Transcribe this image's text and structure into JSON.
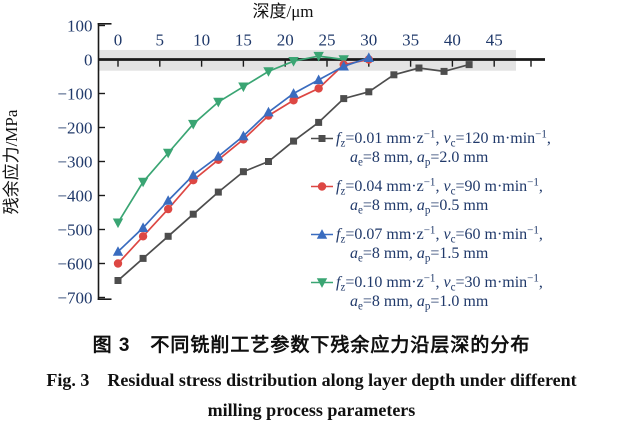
{
  "figure": {
    "caption_cn": "图 3　不同铣削工艺参数下残余应力沿层深的分布",
    "caption_en_line1": "Fig. 3　Residual stress distribution along layer depth under different",
    "caption_en_line2": "milling process parameters"
  },
  "colors": {
    "background": "#ffffff",
    "axis": "#1a1a1a",
    "tick_text": "#20396a",
    "legend_text": "#20396a",
    "zero_band": "#e3e3e3"
  },
  "chart_data": {
    "type": "line",
    "title": "",
    "xlabel": "深度/μm",
    "ylabel": "残余应力/MPa",
    "xlim": [
      0,
      47
    ],
    "ylim": [
      -700,
      100
    ],
    "x_ticks": [
      0,
      5,
      10,
      15,
      20,
      25,
      30,
      35,
      40,
      45
    ],
    "y_ticks": [
      100,
      0,
      -100,
      -200,
      -300,
      -400,
      -500,
      -600,
      -700
    ],
    "grid": false,
    "legend_position": "right-middle",
    "zero_band_mpa": [
      28,
      -33
    ],
    "series": [
      {
        "name": "fz=0.01 mm·z−1, vc=120 m·min−1, ae=8 mm, ap=2.0 mm",
        "marker": "square",
        "color": "#4d4d4d",
        "x": [
          0,
          3,
          6,
          9,
          12,
          15,
          18,
          21,
          24,
          27,
          30,
          33,
          36,
          39,
          42
        ],
        "y": [
          -650,
          -585,
          -520,
          -455,
          -390,
          -330,
          -300,
          -240,
          -185,
          -115,
          -95,
          -45,
          -25,
          -35,
          -15
        ]
      },
      {
        "name": "fz=0.04 mm·z−1, vc=90 m·min−1, ae=8 mm, ap=0.5 mm",
        "marker": "circle",
        "color": "#dd4743",
        "x": [
          0,
          3,
          6,
          9,
          12,
          15,
          18,
          21,
          24,
          27,
          30
        ],
        "y": [
          -600,
          -520,
          -440,
          -355,
          -295,
          -235,
          -165,
          -120,
          -85,
          -15,
          0
        ]
      },
      {
        "name": "fz=0.07 mm·z−1, vc=60 m·min−1, ae=8 mm, ap=1.5 mm",
        "marker": "triangle-up",
        "color": "#3a6cbf",
        "x": [
          0,
          3,
          6,
          9,
          12,
          15,
          18,
          21,
          24,
          27,
          30
        ],
        "y": [
          -565,
          -495,
          -415,
          -340,
          -285,
          -225,
          -155,
          -100,
          -60,
          -20,
          5
        ]
      },
      {
        "name": "fz=0.10 mm·z−1, vc=30 m·min−1, ae=8 mm, ap=1.0 mm",
        "marker": "triangle-down",
        "color": "#3aa573",
        "x": [
          0,
          3,
          6,
          9,
          12,
          15,
          18,
          21,
          24,
          27
        ],
        "y": [
          -480,
          -360,
          -275,
          -190,
          -125,
          -80,
          -35,
          -5,
          10,
          0
        ]
      }
    ]
  },
  "legend": {
    "entries": [
      {
        "marker": "square",
        "color": "#4d4d4d",
        "line1": [
          [
            "i",
            "f"
          ],
          [
            "sub",
            "z"
          ],
          [
            "n",
            "=0.01 mm·z"
          ],
          [
            "sup",
            "−1"
          ],
          [
            "n",
            ", "
          ],
          [
            "i",
            "v"
          ],
          [
            "sub",
            "c"
          ],
          [
            "n",
            "=120 m·min"
          ],
          [
            "sup",
            "−1"
          ],
          [
            "n",
            ","
          ]
        ],
        "line2": [
          [
            "i",
            "a"
          ],
          [
            "sub",
            "e"
          ],
          [
            "n",
            "=8 mm, "
          ],
          [
            "i",
            "a"
          ],
          [
            "sub",
            "p"
          ],
          [
            "n",
            "=2.0 mm"
          ]
        ]
      },
      {
        "marker": "circle",
        "color": "#dd4743",
        "line1": [
          [
            "i",
            "f"
          ],
          [
            "sub",
            "z"
          ],
          [
            "n",
            "=0.04 mm·z"
          ],
          [
            "sup",
            "−1"
          ],
          [
            "n",
            ", "
          ],
          [
            "i",
            "v"
          ],
          [
            "sub",
            "c"
          ],
          [
            "n",
            "=90 m·min"
          ],
          [
            "sup",
            "−1"
          ],
          [
            "n",
            ","
          ]
        ],
        "line2": [
          [
            "i",
            "a"
          ],
          [
            "sub",
            "e"
          ],
          [
            "n",
            "=8 mm, "
          ],
          [
            "i",
            "a"
          ],
          [
            "sub",
            "p"
          ],
          [
            "n",
            "=0.5 mm"
          ]
        ]
      },
      {
        "marker": "triangle-up",
        "color": "#3a6cbf",
        "line1": [
          [
            "i",
            "f"
          ],
          [
            "sub",
            "z"
          ],
          [
            "n",
            "=0.07 mm·z"
          ],
          [
            "sup",
            "−1"
          ],
          [
            "n",
            ", "
          ],
          [
            "i",
            "v"
          ],
          [
            "sub",
            "c"
          ],
          [
            "n",
            "=60 m·min"
          ],
          [
            "sup",
            "−1"
          ],
          [
            "n",
            ","
          ]
        ],
        "line2": [
          [
            "i",
            "a"
          ],
          [
            "sub",
            "e"
          ],
          [
            "n",
            "=8 mm, "
          ],
          [
            "i",
            "a"
          ],
          [
            "sub",
            "p"
          ],
          [
            "n",
            "=1.5 mm"
          ]
        ]
      },
      {
        "marker": "triangle-down",
        "color": "#3aa573",
        "line1": [
          [
            "i",
            "f"
          ],
          [
            "sub",
            "z"
          ],
          [
            "n",
            "=0.10 mm·z"
          ],
          [
            "sup",
            "−1"
          ],
          [
            "n",
            ", "
          ],
          [
            "i",
            "v"
          ],
          [
            "sub",
            "c"
          ],
          [
            "n",
            "=30 m·min"
          ],
          [
            "sup",
            "−1"
          ],
          [
            "n",
            ","
          ]
        ],
        "line2": [
          [
            "i",
            "a"
          ],
          [
            "sub",
            "e"
          ],
          [
            "n",
            "=8 mm, "
          ],
          [
            "i",
            "a"
          ],
          [
            "sub",
            "p"
          ],
          [
            "n",
            "=1.0 mm"
          ]
        ]
      }
    ]
  }
}
